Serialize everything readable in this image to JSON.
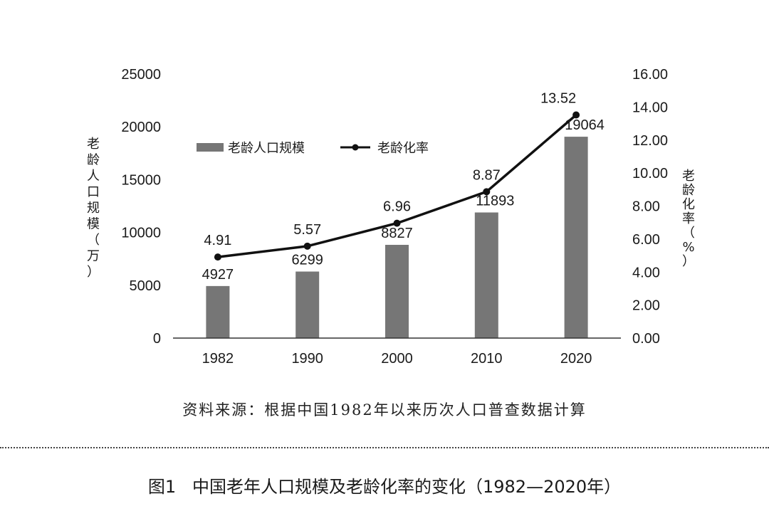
{
  "chart_data": {
    "type": "bar+line",
    "categories": [
      "1982",
      "1990",
      "2000",
      "2010",
      "2020"
    ],
    "series": [
      {
        "name": "老龄人口规模",
        "type": "bar",
        "axis": "left",
        "values": [
          4927,
          6299,
          8827,
          11893,
          19064
        ],
        "labels": [
          "4927",
          "6299",
          "8827",
          "11893",
          "19064"
        ],
        "color": "#767676"
      },
      {
        "name": "老龄化率",
        "type": "line",
        "axis": "right",
        "values": [
          4.91,
          5.57,
          6.96,
          8.87,
          13.52
        ],
        "labels": [
          "4.91",
          "5.57",
          "6.96",
          "8.87",
          "13.52"
        ],
        "color": "#111111"
      }
    ],
    "y_left": {
      "label": "老龄人口规模（万）",
      "ylim": [
        0,
        25000
      ],
      "ticks": [
        "0",
        "5000",
        "10000",
        "15000",
        "20000",
        "25000"
      ]
    },
    "y_right": {
      "label": "老龄化率（%）",
      "ylim": [
        0,
        16
      ],
      "ticks": [
        "0.00",
        "2.00",
        "4.00",
        "6.00",
        "8.00",
        "10.00",
        "12.00",
        "14.00",
        "16.00"
      ]
    },
    "grid": false,
    "legend": "top-left"
  },
  "source": "资料来源：根据中国1982年以来历次人口普查数据计算",
  "caption": "图1   中国老年人口规模及老龄化率的变化（1982—2020年）"
}
